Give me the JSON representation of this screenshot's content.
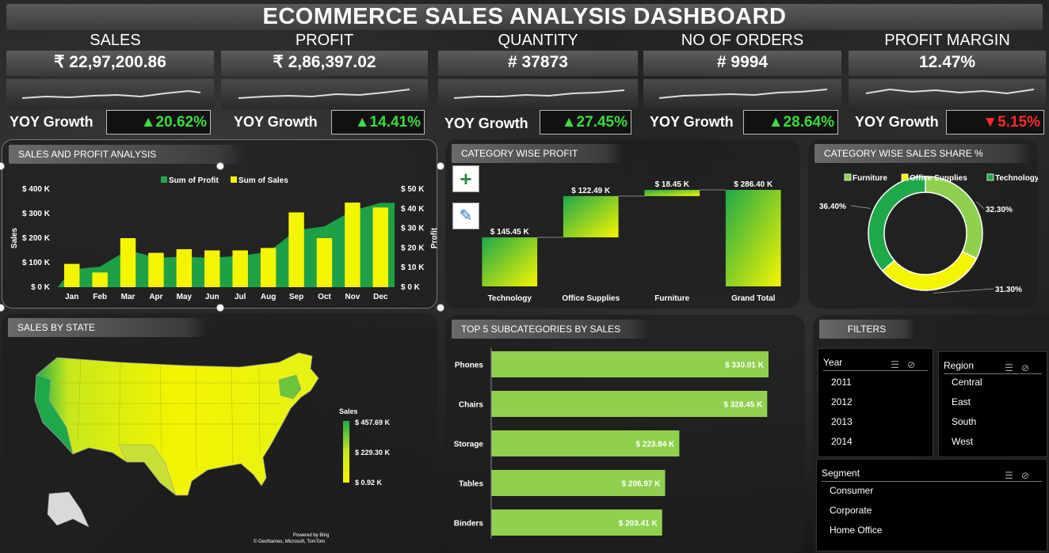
{
  "header": {
    "title": "ECOMMERCE SALES ANALYSIS DASHBOARD"
  },
  "kpis": [
    {
      "title": "SALES",
      "value": "₹ 22,97,200.86",
      "yoy_label": "YOY Growth",
      "growth": "▲20.62%",
      "direction": "up"
    },
    {
      "title": "PROFIT",
      "value": "₹ 2,86,397.02",
      "yoy_label": "YOY Growth",
      "growth": "▲14.41%",
      "direction": "up"
    },
    {
      "title": "QUANTITY",
      "value": "# 37873",
      "yoy_label": "YOY Growth",
      "growth": "▲27.45%",
      "direction": "up"
    },
    {
      "title": "NO OF ORDERS",
      "value": "# 9994",
      "yoy_label": "YOY Growth",
      "growth": "▲28.64%",
      "direction": "up"
    },
    {
      "title": "PROFIT MARGIN",
      "value": "12.47%",
      "yoy_label": "YOY Growth",
      "growth": "▼5.15%",
      "direction": "down"
    }
  ],
  "panels": {
    "sales_profit": "SALES AND PROFIT ANALYSIS",
    "category_profit": "CATEGORY WISE PROFIT",
    "category_share": "CATEGORY WISE SALES SHARE %",
    "sales_by_state": "SALES BY STATE",
    "top5": "TOP 5 SUBCATEGORIES BY SALES",
    "filters": "FILTERS"
  },
  "chart_data": [
    {
      "type": "bar",
      "title": "SALES AND PROFIT ANALYSIS",
      "categories": [
        "Jan",
        "Feb",
        "Mar",
        "Apr",
        "May",
        "Jun",
        "Jul",
        "Aug",
        "Sep",
        "Oct",
        "Nov",
        "Dec"
      ],
      "series": [
        {
          "name": "Sum of Profit",
          "type": "area",
          "axis": "right",
          "color": "#1fa84a",
          "values": [
            9000,
            10500,
            19000,
            15000,
            15500,
            15000,
            16000,
            18000,
            29000,
            31000,
            39000,
            43000
          ]
        },
        {
          "name": "Sum of Sales",
          "type": "bar",
          "axis": "left",
          "color": "#f5f500",
          "values": [
            95000,
            60000,
            200000,
            140000,
            155000,
            150000,
            150000,
            160000,
            305000,
            200000,
            345000,
            325000
          ]
        }
      ],
      "ylabel": "Sales",
      "y2label": "Profit",
      "y_ticks": [
        "$ 0 K",
        "$ 100 K",
        "$ 200 K",
        "$ 300 K",
        "$ 400 K"
      ],
      "y2_ticks": [
        "$ 0 K",
        "$ 10 K",
        "$ 20 K",
        "$ 30 K",
        "$ 40 K",
        "$ 50 K"
      ],
      "ylim": [
        0,
        400000
      ],
      "y2lim": [
        0,
        50000
      ],
      "legend": "top"
    },
    {
      "type": "bar",
      "title": "CATEGORY WISE PROFIT",
      "subtype": "waterfall",
      "categories": [
        "Technology",
        "Office Supplies",
        "Furniture",
        "Grand Total"
      ],
      "values": [
        145.45,
        122.49,
        18.45,
        286.4
      ],
      "labels": [
        "$ 145.45 K",
        "$ 122.49 K",
        "$ 18.45 K",
        "$ 286.40 K"
      ],
      "ylim": [
        0,
        286.4
      ]
    },
    {
      "type": "pie",
      "title": "CATEGORY WISE SALES SHARE %",
      "subtype": "donut",
      "categories": [
        "Furniture",
        "Office Supplies",
        "Technology"
      ],
      "values": [
        32.3,
        31.3,
        36.4
      ],
      "labels": [
        "32.30%",
        "31.30%",
        "36.40%"
      ],
      "colors": [
        "#8fd14f",
        "#f5f500",
        "#1fa84a"
      ],
      "legend": "top"
    },
    {
      "type": "bar",
      "title": "TOP 5 SUBCATEGORIES BY SALES",
      "orientation": "horizontal",
      "categories": [
        "Phones",
        "Chairs",
        "Storage",
        "Tables",
        "Binders"
      ],
      "values": [
        330.01,
        328.45,
        223.84,
        206.97,
        203.41
      ],
      "labels": [
        "$ 330.01 K",
        "$ 328.45 K",
        "$ 223.84 K",
        "$ 206.97 K",
        "$ 203.41 K"
      ],
      "color": "#8fd14f"
    }
  ],
  "map": {
    "legend_title": "Sales",
    "legend_ticks": [
      "$ 457.69 K",
      "$ 229.30 K",
      "$ 0.92 K"
    ],
    "credit1": "Powered by Bing",
    "credit2": "© GeoNames, Microsoft, TomTom"
  },
  "filters": {
    "year": {
      "label": "Year",
      "items": [
        "2011",
        "2012",
        "2013",
        "2014"
      ]
    },
    "region": {
      "label": "Region",
      "items": [
        "Central",
        "East",
        "South",
        "West"
      ]
    },
    "segment": {
      "label": "Segment",
      "items": [
        "Consumer",
        "Corporate",
        "Home Office"
      ]
    }
  },
  "tools": {
    "add": "+",
    "brush": "✎"
  }
}
